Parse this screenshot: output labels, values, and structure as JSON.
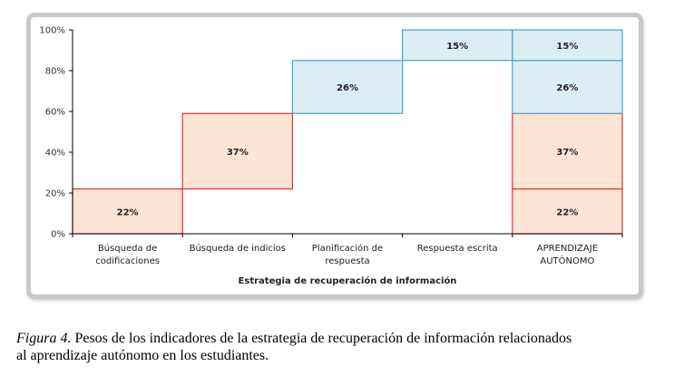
{
  "chart_data": {
    "type": "waterfall",
    "categories": [
      [
        "Búsqueda de",
        "codificaciones"
      ],
      [
        "Búsqueda de indicios"
      ],
      [
        "Planificación de",
        "respuesta"
      ],
      [
        "Respuesta escrita"
      ],
      [
        "APRENDIZAJE",
        "AUTÓNOMO"
      ]
    ],
    "category_labels": [
      "Búsqueda de codificaciones",
      "Búsqueda de indicios",
      "Planificación de respuesta",
      "Respuesta escrita",
      "APRENDIZAJE AUTÓNOMO"
    ],
    "steps": [
      {
        "category": 0,
        "base": 0,
        "value": 22,
        "label": "22%",
        "color": "red"
      },
      {
        "category": 1,
        "base": 22,
        "value": 37,
        "label": "37%",
        "color": "red"
      },
      {
        "category": 2,
        "base": 59,
        "value": 26,
        "label": "26%",
        "color": "blue"
      },
      {
        "category": 3,
        "base": 85,
        "value": 15,
        "label": "15%",
        "color": "blue"
      }
    ],
    "total_stack": [
      {
        "base": 0,
        "value": 22,
        "label": "22%",
        "color": "red"
      },
      {
        "base": 22,
        "value": 37,
        "label": "37%",
        "color": "red"
      },
      {
        "base": 59,
        "value": 26,
        "label": "26%",
        "color": "blue"
      },
      {
        "base": 85,
        "value": 15,
        "label": "15%",
        "color": "blue"
      }
    ],
    "y_ticks": [
      0,
      20,
      40,
      60,
      80,
      100
    ],
    "y_tick_labels": [
      "0%",
      "20%",
      "40%",
      "60%",
      "80%",
      "100%"
    ],
    "ylim": [
      0,
      100
    ],
    "xlabel": "Estrategia de recuperación de información",
    "ylabel": "",
    "title": "",
    "grid": false,
    "colors": {
      "red": {
        "fill": "#fde5d6",
        "stroke": "#e03030"
      },
      "blue": {
        "fill": "#dbeef5",
        "stroke": "#4aa3c4"
      },
      "axis": "#000000"
    }
  },
  "caption": {
    "lead": "Figura 4.",
    "line1": " Pesos de los indicadores de la estrategia de recuperación de información relacionados",
    "line2": "al aprendizaje autónomo en los estudiantes."
  }
}
